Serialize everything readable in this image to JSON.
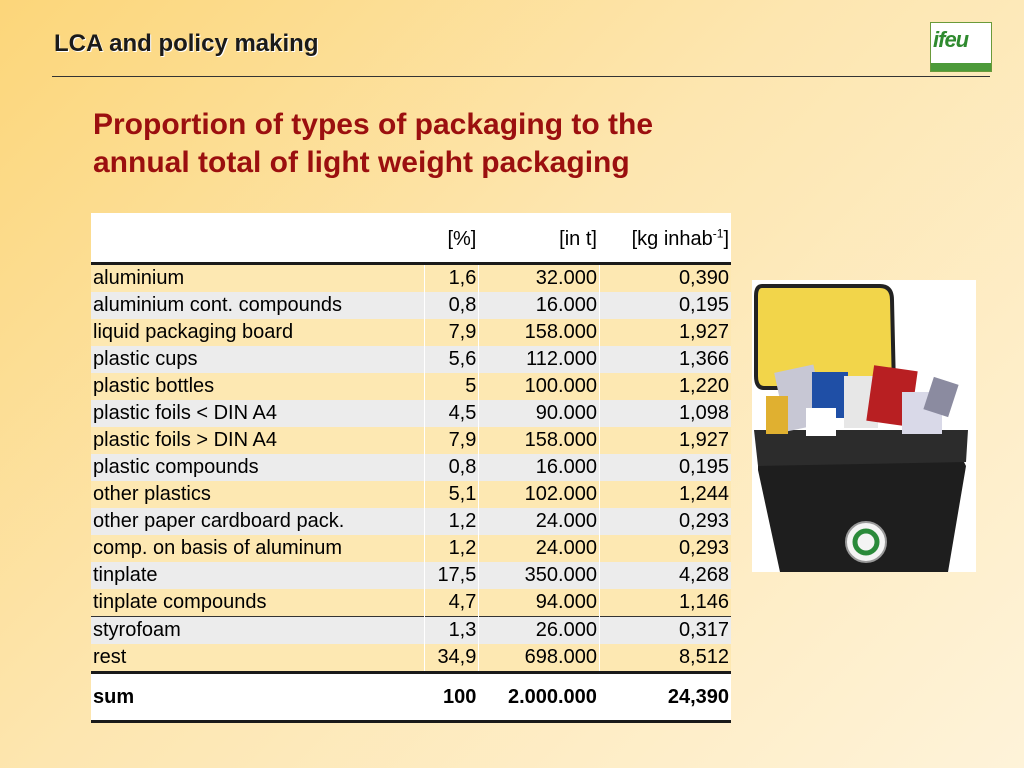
{
  "header": {
    "title": "LCA and policy making"
  },
  "logo": {
    "text": "ifeu"
  },
  "heading": {
    "line1": "Proportion of types of packaging to the",
    "line2": "annual total of light weight packaging"
  },
  "table": {
    "columns": {
      "name": "",
      "pct": "[%]",
      "t": "[in t]",
      "kg_prefix": "[kg inhab",
      "kg_sup": "-1",
      "kg_suffix": "]"
    },
    "rows": [
      {
        "name": "aluminium",
        "pct": "1,6",
        "t": "32.000",
        "kg": "0,390"
      },
      {
        "name": "aluminium cont. compounds",
        "pct": "0,8",
        "t": "16.000",
        "kg": "0,195"
      },
      {
        "name": "liquid packaging board",
        "pct": "7,9",
        "t": "158.000",
        "kg": "1,927"
      },
      {
        "name": "plastic cups",
        "pct": "5,6",
        "t": "112.000",
        "kg": "1,366"
      },
      {
        "name": "plastic bottles",
        "pct": "5",
        "t": "100.000",
        "kg": "1,220"
      },
      {
        "name": "plastic foils < DIN A4",
        "pct": "4,5",
        "t": "90.000",
        "kg": "1,098"
      },
      {
        "name": "plastic foils > DIN A4",
        "pct": "7,9",
        "t": "158.000",
        "kg": "1,927"
      },
      {
        "name": "plastic compounds",
        "pct": "0,8",
        "t": "16.000",
        "kg": "0,195"
      },
      {
        "name": "other plastics",
        "pct": "5,1",
        "t": "102.000",
        "kg": "1,244"
      },
      {
        "name": "other paper cardboard pack.",
        "pct": "1,2",
        "t": "24.000",
        "kg": "0,293"
      },
      {
        "name": "comp. on basis of aluminum",
        "pct": "1,2",
        "t": "24.000",
        "kg": "0,293"
      },
      {
        "name": "tinplate",
        "pct": "17,5",
        "t": "350.000",
        "kg": "4,268"
      },
      {
        "name": "tinplate compounds",
        "pct": "4,7",
        "t": "94.000",
        "kg": "1,146"
      },
      {
        "name": "styrofoam",
        "pct": "1,3",
        "t": "26.000",
        "kg": "0,317"
      },
      {
        "name": "rest",
        "pct": "34,9",
        "t": "698.000",
        "kg": "8,512"
      }
    ],
    "sum": {
      "name": "sum",
      "pct": "100",
      "t": "2.000.000",
      "kg": "24,390"
    }
  },
  "colors": {
    "heading": "#9b0f0f",
    "row_odd": "#fde8b2",
    "row_even": "#ececec",
    "bin_body": "#1e1e1e",
    "bin_lid": "#f2d54a"
  },
  "image": {
    "name": "waste-bin-photo",
    "recycle_symbol": "recycle-icon"
  }
}
